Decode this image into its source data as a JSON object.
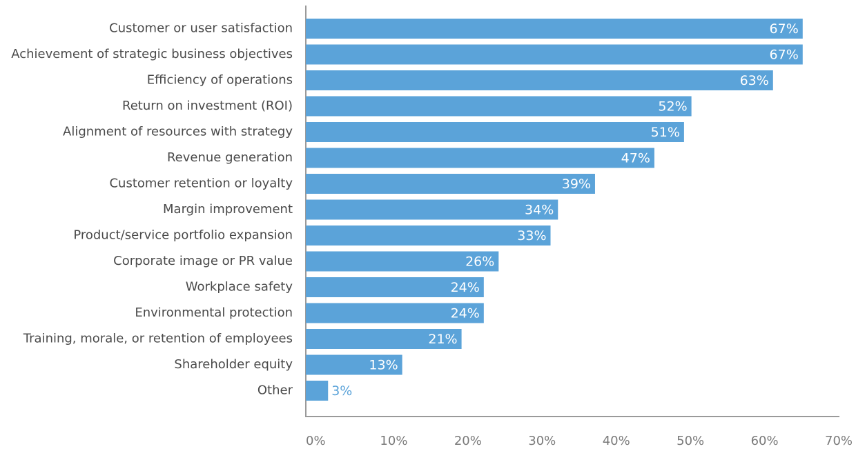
{
  "chart_data": {
    "type": "bar",
    "orientation": "horizontal",
    "categories": [
      "Customer or user satisfaction",
      "Achievement of strategic business objectives",
      "Efficiency of operations",
      "Return on investment (ROI)",
      "Alignment of resources with strategy",
      "Revenue generation",
      "Customer retention or loyalty",
      "Margin improvement",
      "Product/service portfolio expansion",
      "Corporate image or PR value",
      "Workplace safety",
      "Environmental protection",
      "Training, morale, or retention of employees",
      "Shareholder equity",
      "Other"
    ],
    "values": [
      67,
      67,
      63,
      52,
      51,
      47,
      39,
      34,
      33,
      26,
      24,
      24,
      21,
      13,
      3
    ],
    "value_labels": [
      "67%",
      "67%",
      "63%",
      "52%",
      "51%",
      "47%",
      "39%",
      "34%",
      "33%",
      "26%",
      "24%",
      "24%",
      "21%",
      "13%",
      "3%"
    ],
    "color": "#5ba3d9",
    "xlim": [
      0,
      70
    ],
    "xticks": [
      {
        "value": 0,
        "label": "0%"
      },
      {
        "value": 10,
        "label": "10%"
      },
      {
        "value": 20,
        "label": "20%"
      },
      {
        "value": 30,
        "label": "30%"
      },
      {
        "value": 40,
        "label": "40%"
      },
      {
        "value": 50,
        "label": "50%"
      },
      {
        "value": 60,
        "label": "60%"
      },
      {
        "value": 70,
        "label": "70%"
      }
    ],
    "grid": false
  }
}
